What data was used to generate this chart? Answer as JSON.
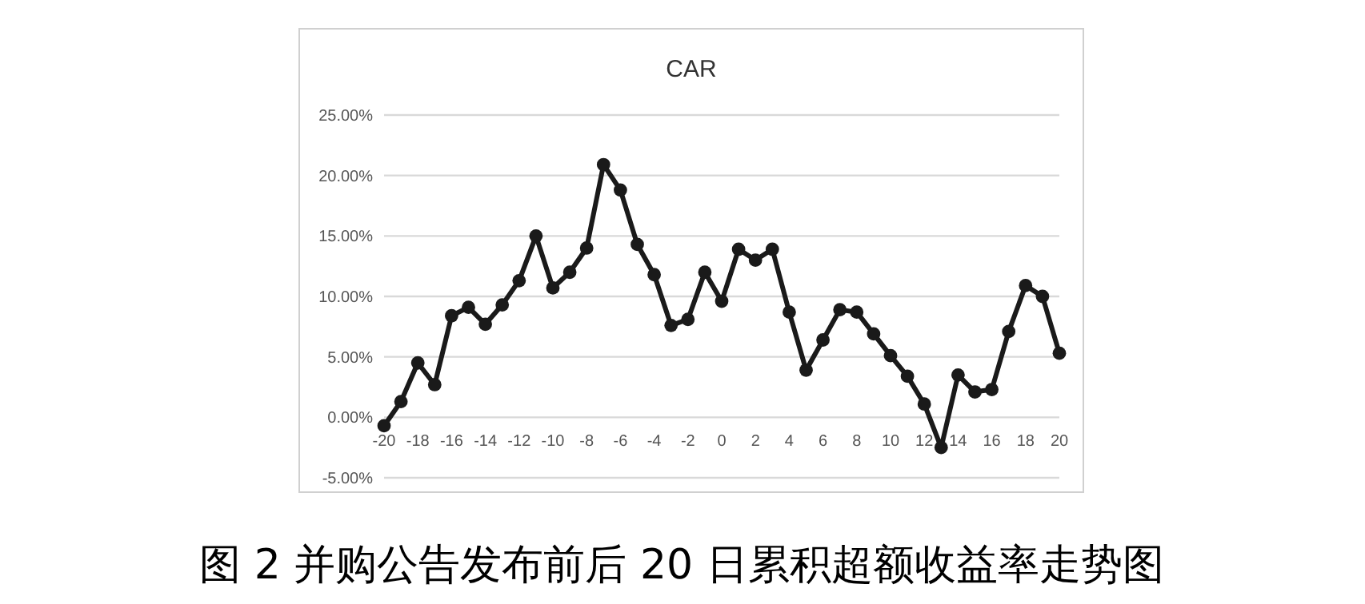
{
  "chart_data": {
    "type": "line",
    "title": "CAR",
    "annotations": [
      "图 2 并购公告发布前后 20 日累积超额收益率走势图"
    ],
    "x": [
      -20,
      -19,
      -18,
      -17,
      -16,
      -15,
      -14,
      -13,
      -12,
      -11,
      -10,
      -9,
      -8,
      -7,
      -6,
      -5,
      -4,
      -3,
      -2,
      -1,
      0,
      1,
      2,
      3,
      4,
      5,
      6,
      7,
      8,
      9,
      10,
      11,
      12,
      13,
      14,
      15,
      16,
      17,
      18,
      19,
      20
    ],
    "series": [
      {
        "color": "#1a1a1a",
        "values": [
          -0.7,
          1.3,
          4.5,
          2.7,
          8.4,
          9.1,
          7.7,
          9.3,
          11.3,
          15.0,
          10.7,
          12.0,
          14.0,
          20.9,
          18.8,
          14.3,
          11.8,
          7.6,
          8.1,
          12.0,
          9.6,
          13.9,
          13.0,
          13.9,
          8.7,
          3.9,
          6.4,
          8.9,
          8.7,
          6.9,
          5.1,
          3.4,
          1.1,
          -2.5,
          3.5,
          2.1,
          2.3,
          7.1,
          10.9,
          10.0,
          5.3
        ]
      }
    ],
    "xlim": [
      -20,
      20
    ],
    "xticks": [
      -20,
      -18,
      -16,
      -14,
      -12,
      -10,
      -8,
      -6,
      -4,
      -2,
      0,
      2,
      4,
      6,
      8,
      10,
      12,
      14,
      16,
      18,
      20
    ],
    "ylim": [
      -5,
      25
    ],
    "yticks": [
      {
        "value": -5,
        "label": "-5.00%"
      },
      {
        "value": 0,
        "label": "0.00%"
      },
      {
        "value": 5,
        "label": "5.00%"
      },
      {
        "value": 10,
        "label": "10.00%"
      },
      {
        "value": 15,
        "label": "15.00%"
      },
      {
        "value": 20,
        "label": "20.00%"
      },
      {
        "value": 25,
        "label": "25.00%"
      }
    ],
    "grid": "y",
    "marker": "circle",
    "line_style": "solid"
  }
}
